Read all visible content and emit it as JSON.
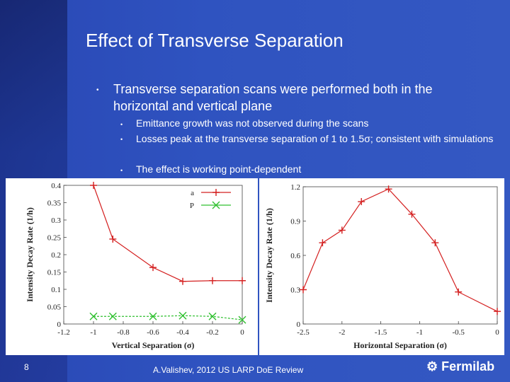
{
  "slide": {
    "title": "Effect of Transverse Separation",
    "bullet": "Transverse separation scans were performed both in the horizontal and vertical plane",
    "subbullets": [
      "Emittance growth was not observed during the scans",
      "Losses peak at the transverse separation of 1 to 1.5σ; consistent with simulations",
      "The effect is working point-dependent"
    ],
    "page_number": "8",
    "footer": "A.Valishev, 2012 US LARP DoE Review",
    "logo": "Fermilab"
  },
  "chart_data": [
    {
      "type": "line",
      "xlabel": "Vertical Separation (σ)",
      "ylabel": "Intensity Decay Rate (1/h)",
      "xlim": [
        -1.2,
        0
      ],
      "ylim": [
        0,
        0.4
      ],
      "xticks": [
        "-1.2",
        "-1",
        "-0.8",
        "-0.6",
        "-0.4",
        "-0.2",
        "0"
      ],
      "yticks": [
        "0",
        "0.05",
        "0.1",
        "0.15",
        "0.2",
        "0.25",
        "0.3",
        "0.35",
        "0.4"
      ],
      "legend_position": "top-right",
      "series": [
        {
          "name": "a",
          "color": "#d42020",
          "marker": "plus",
          "x": [
            -1.0,
            -0.87,
            -0.6,
            -0.4,
            -0.2,
            0.0
          ],
          "y": [
            0.4,
            0.245,
            0.163,
            0.123,
            0.125,
            0.125
          ]
        },
        {
          "name": "P",
          "color": "#30c030",
          "marker": "cross",
          "x": [
            -1.0,
            -0.87,
            -0.6,
            -0.4,
            -0.2,
            0.0
          ],
          "y": [
            0.022,
            0.022,
            0.022,
            0.024,
            0.022,
            0.012
          ]
        }
      ]
    },
    {
      "type": "line",
      "xlabel": "Horizontal Separation (σ)",
      "ylabel": "Intensity Decay Rate (1/h)",
      "xlim": [
        -2.5,
        0
      ],
      "ylim": [
        0,
        1.2
      ],
      "xticks": [
        "-2.5",
        "-2",
        "-1.5",
        "-1",
        "-0.5",
        "0"
      ],
      "yticks": [
        "0",
        "0.3",
        "0.6",
        "0.9",
        "1.2"
      ],
      "series": [
        {
          "color": "#d42020",
          "marker": "plus",
          "x": [
            -2.5,
            -2.25,
            -2.0,
            -1.75,
            -1.4,
            -1.1,
            -0.8,
            -0.5,
            0.0
          ],
          "y": [
            0.3,
            0.71,
            0.82,
            1.07,
            1.18,
            0.96,
            0.71,
            0.28,
            0.11
          ]
        }
      ]
    }
  ]
}
